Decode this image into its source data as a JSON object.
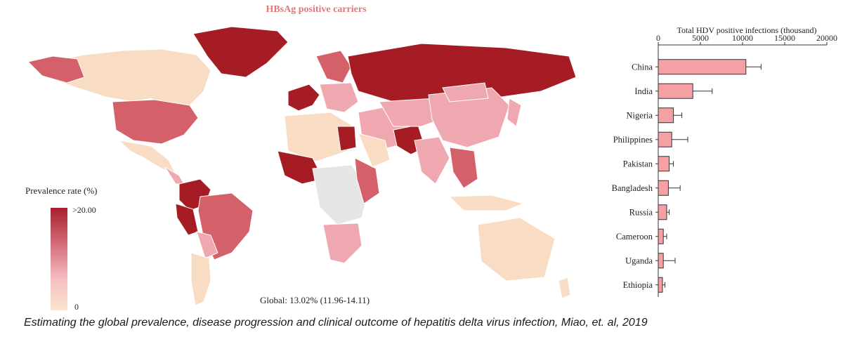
{
  "map": {
    "title": "HBsAg positive carriers",
    "legend_title": "Prevalence rate (%)",
    "legend_max": ">20.00",
    "legend_min": "0",
    "global_note": "Global: 13.02% (11.96-14.11)",
    "colors": {
      "dark": "#a61c24",
      "medium": "#d4606a",
      "light": "#f0a8b0",
      "pale": "#f9dcc4",
      "nodata": "#e6e6e6"
    }
  },
  "chart_data": {
    "type": "bar",
    "orientation": "horizontal",
    "title": "Total HDV positive infections (thousand)",
    "xlim": [
      0,
      20000
    ],
    "xticks": [
      0,
      5000,
      10000,
      15000,
      20000
    ],
    "categories": [
      "China",
      "India",
      "Nigeria",
      "Philippines",
      "Pakistan",
      "Bangladesh",
      "Russia",
      "Cameroon",
      "Uganda",
      "Ethiopia"
    ],
    "values": [
      10400,
      4100,
      1800,
      1600,
      1300,
      1200,
      1000,
      600,
      600,
      500
    ],
    "error_upper": [
      12200,
      6400,
      2800,
      3500,
      1800,
      2600,
      1300,
      1000,
      2000,
      800
    ],
    "bar_color": "#f4a0a4"
  },
  "caption": "Estimating the global prevalence, disease progression and clinical outcome of hepatitis delta virus infection, Miao, et. al, 2019"
}
